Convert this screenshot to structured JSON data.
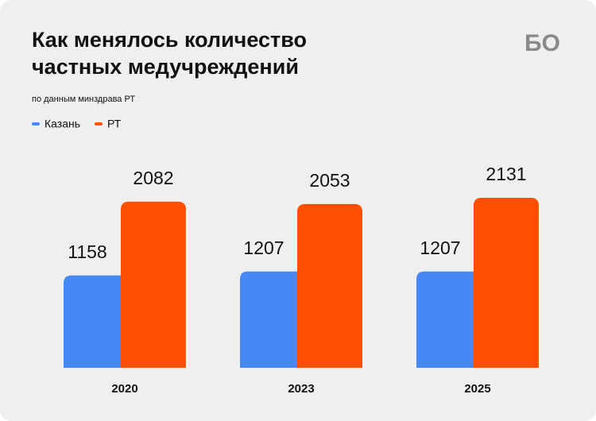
{
  "chart_data": {
    "type": "bar",
    "title_lines": [
      "Как менялось количество",
      "частных медучреждений"
    ],
    "subtitle": "по данным минздрава РТ",
    "logo": "БО",
    "categories": [
      "2020",
      "2023",
      "2025"
    ],
    "series": [
      {
        "name": "Казань",
        "color": "#4688f5",
        "values": [
          1158,
          1207,
          1207
        ]
      },
      {
        "name": "РТ",
        "color": "#ff4f00",
        "values": [
          2082,
          2053,
          2131
        ]
      }
    ],
    "legend": "top-left"
  }
}
